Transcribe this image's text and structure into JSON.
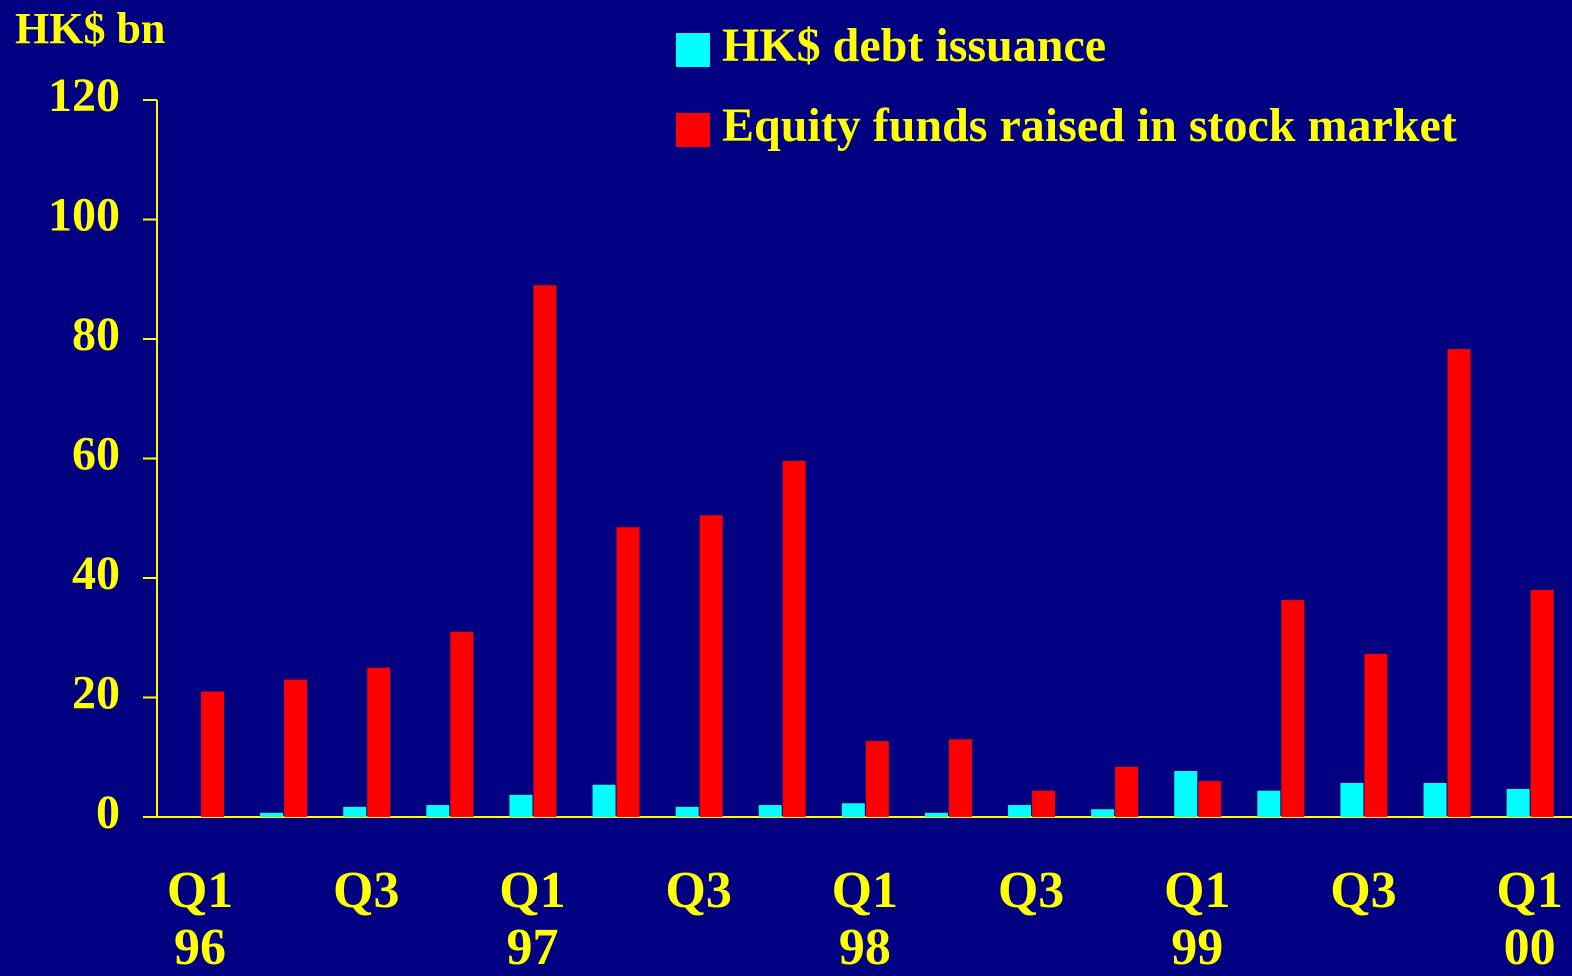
{
  "chart_data": {
    "type": "bar",
    "y_axis_label": "HK$ bn",
    "categories": [
      "Q1",
      null,
      "Q3",
      null,
      "Q1",
      null,
      "Q3",
      null,
      "Q1",
      null,
      "Q3",
      null,
      "Q1",
      null,
      "Q3",
      null,
      "Q1"
    ],
    "category_years": [
      "96",
      null,
      null,
      null,
      "97",
      null,
      null,
      null,
      "98",
      null,
      null,
      null,
      "99",
      null,
      null,
      null,
      "00"
    ],
    "series": [
      {
        "name": "HK$ debt issuance",
        "color": "#00ffff",
        "values": [
          0,
          0.7,
          1.7,
          2,
          3.7,
          5.4,
          1.7,
          2,
          2.3,
          0.7,
          2,
          1.3,
          7.7,
          4.4,
          5.7,
          5.7,
          4.7
        ]
      },
      {
        "name": "Equity funds raised in stock market",
        "color": "#ff0000",
        "values": [
          21,
          23,
          25,
          31,
          89,
          48.5,
          50.5,
          59.6,
          12.7,
          13,
          4.4,
          8.4,
          6,
          36.3,
          27.3,
          78.3,
          38
        ]
      }
    ],
    "ylim": [
      0,
      120
    ],
    "yticks": [
      0,
      20,
      40,
      60,
      80,
      100,
      120
    ],
    "legend": "top-right"
  }
}
